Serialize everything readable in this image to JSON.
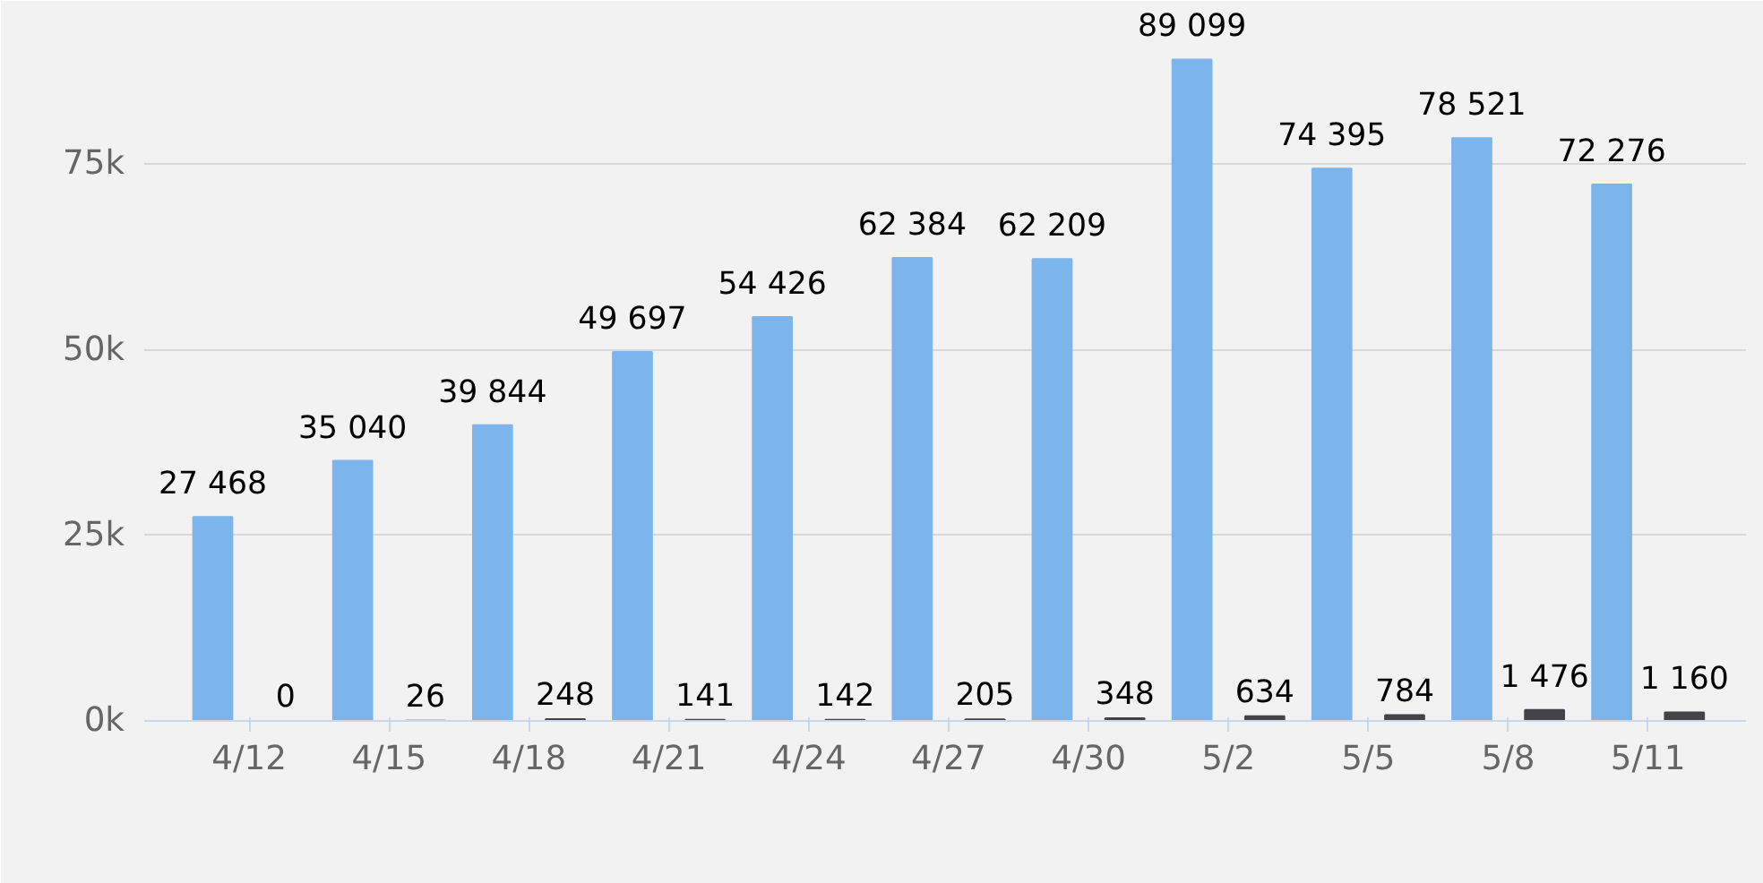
{
  "chart_data": {
    "type": "bar",
    "categories": [
      "4/12",
      "4/15",
      "4/18",
      "4/21",
      "4/24",
      "4/27",
      "4/30",
      "5/2",
      "5/5",
      "5/8",
      "5/11"
    ],
    "series": [
      {
        "color": "#7cb5ec",
        "values": [
          27468,
          35040,
          39844,
          49697,
          54426,
          62384,
          62209,
          89099,
          74395,
          78521,
          72276
        ],
        "value_labels": [
          "27 468",
          "35 040",
          "39 844",
          "49 697",
          "54 426",
          "62 384",
          "62 209",
          "89 099",
          "74 395",
          "78 521",
          "72 276"
        ]
      },
      {
        "color": "#434348",
        "values": [
          0,
          26,
          248,
          141,
          142,
          205,
          348,
          634,
          784,
          1476,
          1160
        ],
        "value_labels": [
          "0",
          "26",
          "248",
          "141",
          "142",
          "205",
          "348",
          "634",
          "784",
          "1 476",
          "1 160"
        ]
      }
    ],
    "ylim": [
      0,
      97000
    ],
    "yticks": [
      {
        "value": 0,
        "label": "0k"
      },
      {
        "value": 25000,
        "label": "25k"
      },
      {
        "value": 50000,
        "label": "50k"
      },
      {
        "value": 75000,
        "label": "75k"
      }
    ],
    "grid": "y"
  }
}
